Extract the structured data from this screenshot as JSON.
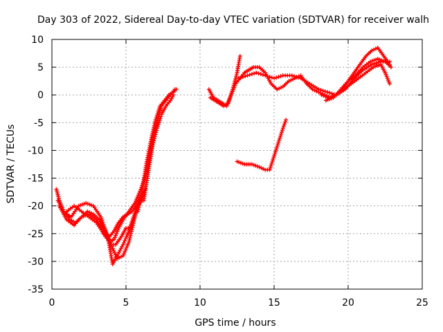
{
  "chart_data": {
    "type": "scatter",
    "title": "Day 303 of 2022, Sidereal Day-to-day VTEC variation (SDTVAR) for receiver walh",
    "xlabel": "GPS time / hours",
    "ylabel": "SDTVAR / TECUs",
    "xlim": [
      0,
      25
    ],
    "ylim": [
      -35,
      10
    ],
    "xticks": [
      0,
      5,
      10,
      15,
      20,
      25
    ],
    "yticks": [
      -35,
      -30,
      -25,
      -20,
      -15,
      -10,
      -5,
      0,
      5,
      10
    ],
    "grid": true,
    "marker": "plus",
    "color": "#ff0000",
    "series": [
      {
        "name": "track-1",
        "x": [
          0.3,
          0.5,
          0.8,
          1.2,
          1.6,
          2.0,
          2.4,
          2.8,
          3.2,
          3.6,
          4.0,
          4.4,
          4.8,
          5.2,
          5.6,
          5.9
        ],
        "y": [
          -17,
          -19,
          -21,
          -22.5,
          -23,
          -22,
          -21,
          -21.5,
          -22.5,
          -24.5,
          -27,
          -29.5,
          -29,
          -26.5,
          -22,
          -19
        ]
      },
      {
        "name": "track-2",
        "x": [
          0.4,
          0.8,
          1.3,
          1.8,
          2.3,
          2.8,
          3.3,
          3.7,
          4.0,
          4.3,
          4.7,
          5.0,
          5.3,
          5.6,
          5.9,
          6.2
        ],
        "y": [
          -19,
          -21,
          -22,
          -20,
          -19.5,
          -20,
          -22,
          -25,
          -27,
          -27,
          -25.5,
          -24,
          -24,
          -22,
          -19.5,
          -18
        ]
      },
      {
        "name": "track-3",
        "x": [
          0.5,
          1.0,
          1.5,
          2.0,
          2.5,
          3.0,
          3.4,
          3.8,
          4.1,
          4.4,
          4.8,
          5.2,
          5.5,
          5.8,
          6.1
        ],
        "y": [
          -20,
          -22.5,
          -23.5,
          -22,
          -21.5,
          -22.5,
          -24,
          -26,
          -30.5,
          -29,
          -27,
          -24.5,
          -22,
          -20,
          -19
        ]
      },
      {
        "name": "track-4",
        "x": [
          1.0,
          1.5,
          2.0,
          2.5,
          3.0,
          3.5,
          3.9,
          4.2,
          4.5,
          4.8,
          5.1,
          5.4,
          5.7,
          6.0,
          6.3
        ],
        "y": [
          -21,
          -20,
          -21,
          -22,
          -23,
          -25,
          -25.5,
          -24.5,
          -23,
          -22,
          -21.5,
          -21,
          -20,
          -18,
          -17
        ]
      },
      {
        "name": "track-5",
        "x": [
          3.3,
          3.6,
          3.9,
          4.2,
          4.5,
          4.8,
          5.2,
          5.6,
          6.0,
          6.4,
          6.8,
          7.1,
          7.4,
          7.7,
          8.0,
          8.3
        ],
        "y": [
          -24,
          -25.5,
          -26.5,
          -26,
          -24,
          -22.5,
          -21,
          -19.5,
          -17,
          -14,
          -8.5,
          -5,
          -2,
          -1,
          0,
          1
        ]
      },
      {
        "name": "track-6",
        "x": [
          5.8,
          6.1,
          6.4,
          6.7,
          7.0,
          7.3,
          7.6,
          7.9,
          8.2,
          8.4
        ],
        "y": [
          -21,
          -17,
          -12,
          -8,
          -4.5,
          -2,
          -1,
          0,
          0.5,
          1
        ]
      },
      {
        "name": "track-7",
        "x": [
          6.2,
          6.5,
          6.8,
          7.1,
          7.4,
          7.7,
          8.0,
          8.2
        ],
        "y": [
          -19,
          -14,
          -9,
          -6,
          -3.5,
          -2,
          -1,
          0
        ]
      },
      {
        "name": "track-8",
        "x": [
          10.6,
          10.9,
          11.2,
          11.5,
          11.8,
          12.1,
          12.4,
          12.7,
          13.0,
          13.3,
          13.6,
          14.0,
          14.4,
          14.8,
          15.2,
          15.6,
          16.0,
          16.4,
          16.8,
          17.2,
          17.6,
          18.0,
          18.4,
          18.8,
          19.2,
          19.6,
          20.0,
          20.4,
          20.8,
          21.2,
          21.6,
          22.0,
          22.4,
          22.8
        ],
        "y": [
          1,
          -0.5,
          -1,
          -1.5,
          -2,
          0,
          2,
          3,
          4,
          4.5,
          5,
          5,
          4,
          2,
          1,
          1.5,
          2.5,
          3,
          3.5,
          2,
          1,
          0.5,
          0,
          -0.5,
          0,
          1,
          2.5,
          4,
          5.5,
          7,
          8,
          8.5,
          7,
          5.5
        ]
      },
      {
        "name": "track-9",
        "x": [
          10.7,
          11.0,
          11.3,
          11.6,
          11.9,
          12.2,
          12.5,
          12.7
        ],
        "y": [
          -0.5,
          -1,
          -1.5,
          -2,
          -1.5,
          1,
          4,
          7
        ]
      },
      {
        "name": "track-10",
        "x": [
          12.6,
          13.2,
          13.8,
          14.4,
          15.0,
          15.6,
          16.2,
          16.8,
          17.4,
          18.0,
          18.6,
          19.2,
          19.8,
          20.4,
          21.0,
          21.6,
          22.2,
          22.8
        ],
        "y": [
          3,
          3.5,
          4,
          3.5,
          3,
          3.5,
          3.5,
          3,
          2,
          1,
          0.5,
          0,
          1,
          3,
          4.5,
          5.5,
          6,
          6
        ]
      },
      {
        "name": "track-11",
        "x": [
          18.2,
          18.7,
          19.2,
          19.7,
          20.2,
          20.7,
          21.2,
          21.7,
          22.2,
          22.5,
          22.8
        ],
        "y": [
          0,
          -0.5,
          0,
          1,
          2,
          3,
          4,
          5,
          5.5,
          4,
          2
        ]
      },
      {
        "name": "track-12",
        "x": [
          18.5,
          19.0,
          19.5,
          20.0,
          20.5,
          21.0,
          21.5,
          22.0,
          22.5,
          22.9
        ],
        "y": [
          -1,
          -0.5,
          1,
          2.5,
          3.5,
          5,
          6,
          6.5,
          6,
          5
        ]
      },
      {
        "name": "track-13",
        "x": [
          12.5,
          13.0,
          13.5,
          14.0,
          14.4,
          14.7,
          15.0,
          15.3,
          15.6,
          15.8
        ],
        "y": [
          -12,
          -12.5,
          -12.5,
          -13,
          -13.5,
          -13.5,
          -11,
          -8.5,
          -6,
          -4.5
        ]
      }
    ]
  }
}
